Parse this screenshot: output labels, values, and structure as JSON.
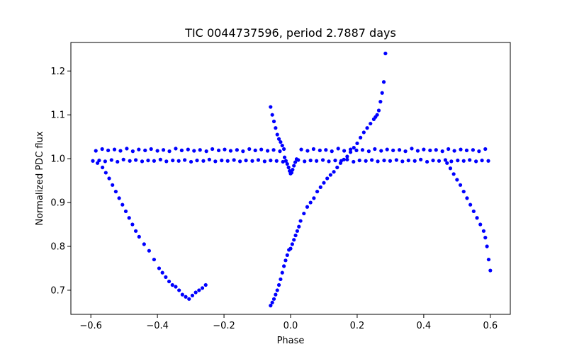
{
  "chart_data": {
    "type": "scatter",
    "title": "TIC 0044737596, period 2.7887 days",
    "xlabel": "Phase",
    "ylabel": "Normalized PDC flux",
    "xlim": [
      -0.66,
      0.66
    ],
    "ylim": [
      0.645,
      1.265
    ],
    "xticks": [
      -0.6,
      -0.4,
      -0.2,
      0.0,
      0.2,
      0.4,
      0.6
    ],
    "xtick_labels": [
      "−0.6",
      "−0.4",
      "−0.2",
      "0.0",
      "0.2",
      "0.4",
      "0.6"
    ],
    "yticks": [
      0.7,
      0.8,
      0.9,
      1.0,
      1.1,
      1.2
    ],
    "ytick_labels": [
      "0.7",
      "0.8",
      "0.9",
      "1.0",
      "1.1",
      "1.2"
    ],
    "grid": false,
    "marker_color": "#0000ff",
    "series": [
      {
        "points": [
          [
            -0.594,
            0.995
          ],
          [
            -0.585,
            1.018
          ],
          [
            -0.575,
            0.996
          ],
          [
            -0.566,
            1.022
          ],
          [
            -0.557,
            0.994
          ],
          [
            -0.548,
            1.019
          ],
          [
            -0.538,
            0.997
          ],
          [
            -0.529,
            1.021
          ],
          [
            -0.52,
            0.993
          ],
          [
            -0.511,
            1.018
          ],
          [
            -0.502,
            0.998
          ],
          [
            -0.492,
            1.023
          ],
          [
            -0.483,
            0.995
          ],
          [
            -0.474,
            1.017
          ],
          [
            -0.465,
            0.997
          ],
          [
            -0.456,
            1.021
          ],
          [
            -0.446,
            0.994
          ],
          [
            -0.437,
            1.019
          ],
          [
            -0.428,
            0.996
          ],
          [
            -0.419,
            1.022
          ],
          [
            -0.41,
            0.995
          ],
          [
            -0.4,
            1.018
          ],
          [
            -0.391,
            0.998
          ],
          [
            -0.382,
            1.02
          ],
          [
            -0.373,
            0.994
          ],
          [
            -0.364,
            1.017
          ],
          [
            -0.354,
            0.996
          ],
          [
            -0.345,
            1.023
          ],
          [
            -0.336,
            0.995
          ],
          [
            -0.327,
            1.019
          ],
          [
            -0.318,
            0.997
          ],
          [
            -0.308,
            1.021
          ],
          [
            -0.299,
            0.993
          ],
          [
            -0.29,
            1.018
          ],
          [
            -0.281,
            0.996
          ],
          [
            -0.272,
            1.02
          ],
          [
            -0.262,
            0.995
          ],
          [
            -0.253,
            1.017
          ],
          [
            -0.244,
            0.998
          ],
          [
            -0.235,
            1.022
          ],
          [
            -0.226,
            0.994
          ],
          [
            -0.216,
            1.019
          ],
          [
            -0.207,
            0.996
          ],
          [
            -0.198,
            1.021
          ],
          [
            -0.189,
            0.995
          ],
          [
            -0.18,
            1.018
          ],
          [
            -0.17,
            0.997
          ],
          [
            -0.161,
            1.02
          ],
          [
            -0.152,
            0.994
          ],
          [
            -0.143,
            1.017
          ],
          [
            -0.134,
            0.996
          ],
          [
            -0.124,
            1.022
          ],
          [
            -0.115,
            0.995
          ],
          [
            -0.106,
            1.019
          ],
          [
            -0.097,
            0.997
          ],
          [
            -0.088,
            1.021
          ],
          [
            -0.078,
            0.994
          ],
          [
            -0.069,
            1.018
          ],
          [
            -0.06,
            0.996
          ],
          [
            -0.051,
            1.02
          ],
          [
            -0.042,
            0.995
          ],
          [
            -0.032,
            1.017
          ],
          [
            -0.023,
            0.993
          ],
          [
            0.023,
            0.997
          ],
          [
            0.032,
            1.021
          ],
          [
            0.042,
            0.994
          ],
          [
            0.051,
            1.018
          ],
          [
            0.06,
            0.996
          ],
          [
            0.069,
            1.022
          ],
          [
            0.078,
            0.995
          ],
          [
            0.088,
            1.019
          ],
          [
            0.097,
            0.997
          ],
          [
            0.106,
            1.02
          ],
          [
            0.115,
            0.994
          ],
          [
            0.124,
            1.017
          ],
          [
            0.134,
            0.996
          ],
          [
            0.143,
            1.023
          ],
          [
            0.152,
            0.995
          ],
          [
            0.161,
            1.018
          ],
          [
            0.17,
            0.998
          ],
          [
            0.18,
            1.021
          ],
          [
            0.189,
            0.993
          ],
          [
            0.198,
            1.019
          ],
          [
            0.207,
            0.996
          ],
          [
            0.216,
            1.02
          ],
          [
            0.226,
            0.995
          ],
          [
            0.235,
            1.017
          ],
          [
            0.244,
            0.997
          ],
          [
            0.253,
            1.022
          ],
          [
            0.262,
            0.994
          ],
          [
            0.272,
            1.018
          ],
          [
            0.281,
            0.996
          ],
          [
            0.29,
            1.021
          ],
          [
            0.299,
            0.995
          ],
          [
            0.308,
            1.019
          ],
          [
            0.318,
            0.997
          ],
          [
            0.327,
            1.02
          ],
          [
            0.336,
            0.994
          ],
          [
            0.345,
            1.017
          ],
          [
            0.354,
            0.996
          ],
          [
            0.364,
            1.023
          ],
          [
            0.373,
            0.995
          ],
          [
            0.382,
            1.018
          ],
          [
            0.391,
            0.998
          ],
          [
            0.4,
            1.021
          ],
          [
            0.41,
            0.993
          ],
          [
            0.419,
            1.019
          ],
          [
            0.428,
            0.996
          ],
          [
            0.437,
            1.02
          ],
          [
            0.446,
            0.995
          ],
          [
            0.456,
            1.017
          ],
          [
            0.465,
            0.997
          ],
          [
            0.474,
            1.022
          ],
          [
            0.483,
            0.994
          ],
          [
            0.492,
            1.018
          ],
          [
            0.502,
            0.996
          ],
          [
            0.511,
            1.021
          ],
          [
            0.52,
            0.995
          ],
          [
            0.529,
            1.019
          ],
          [
            0.538,
            0.997
          ],
          [
            0.548,
            1.02
          ],
          [
            0.557,
            0.994
          ],
          [
            0.566,
            1.017
          ],
          [
            0.575,
            0.996
          ],
          [
            0.585,
            1.022
          ],
          [
            0.594,
            0.995
          ],
          [
            -0.018,
            1.003
          ],
          [
            -0.014,
            0.995
          ],
          [
            -0.01,
            0.988
          ],
          [
            -0.006,
            0.98
          ],
          [
            -0.003,
            0.972
          ],
          [
            0.0,
            0.966
          ],
          [
            0.003,
            0.968
          ],
          [
            0.006,
            0.975
          ],
          [
            0.01,
            0.984
          ],
          [
            0.014,
            0.992
          ],
          [
            0.018,
            0.999
          ],
          [
            -0.58,
            0.99
          ],
          [
            -0.565,
            0.98
          ],
          [
            -0.555,
            0.968
          ],
          [
            -0.545,
            0.955
          ],
          [
            -0.535,
            0.94
          ],
          [
            -0.525,
            0.925
          ],
          [
            -0.515,
            0.91
          ],
          [
            -0.505,
            0.895
          ],
          [
            -0.495,
            0.88
          ],
          [
            -0.485,
            0.865
          ],
          [
            -0.475,
            0.85
          ],
          [
            -0.465,
            0.835
          ],
          [
            -0.455,
            0.822
          ],
          [
            -0.44,
            0.805
          ],
          [
            -0.425,
            0.79
          ],
          [
            -0.41,
            0.77
          ],
          [
            -0.395,
            0.75
          ],
          [
            -0.385,
            0.74
          ],
          [
            -0.375,
            0.73
          ],
          [
            -0.365,
            0.72
          ],
          [
            -0.355,
            0.712
          ],
          [
            -0.345,
            0.708
          ],
          [
            -0.335,
            0.7
          ],
          [
            -0.325,
            0.69
          ],
          [
            -0.315,
            0.685
          ],
          [
            -0.305,
            0.68
          ],
          [
            -0.295,
            0.688
          ],
          [
            -0.285,
            0.695
          ],
          [
            -0.275,
            0.7
          ],
          [
            -0.265,
            0.705
          ],
          [
            -0.255,
            0.712
          ],
          [
            0.47,
            0.99
          ],
          [
            0.48,
            0.978
          ],
          [
            0.49,
            0.965
          ],
          [
            0.5,
            0.952
          ],
          [
            0.51,
            0.94
          ],
          [
            0.52,
            0.925
          ],
          [
            0.53,
            0.91
          ],
          [
            0.54,
            0.895
          ],
          [
            0.55,
            0.88
          ],
          [
            0.56,
            0.865
          ],
          [
            0.57,
            0.85
          ],
          [
            0.58,
            0.835
          ],
          [
            0.585,
            0.82
          ],
          [
            0.59,
            0.8
          ],
          [
            0.595,
            0.77
          ],
          [
            0.6,
            0.745
          ],
          [
            -0.06,
            0.665
          ],
          [
            -0.055,
            0.672
          ],
          [
            -0.05,
            0.68
          ],
          [
            -0.045,
            0.69
          ],
          [
            -0.04,
            0.7
          ],
          [
            -0.035,
            0.712
          ],
          [
            -0.03,
            0.725
          ],
          [
            -0.025,
            0.74
          ],
          [
            -0.02,
            0.755
          ],
          [
            -0.015,
            0.768
          ],
          [
            -0.01,
            0.78
          ],
          [
            -0.005,
            0.792
          ],
          [
            0.0,
            0.795
          ],
          [
            0.005,
            0.805
          ],
          [
            0.01,
            0.815
          ],
          [
            0.015,
            0.825
          ],
          [
            0.02,
            0.835
          ],
          [
            0.025,
            0.845
          ],
          [
            0.03,
            0.858
          ],
          [
            0.04,
            0.875
          ],
          [
            0.05,
            0.89
          ],
          [
            0.06,
            0.9
          ],
          [
            0.07,
            0.91
          ],
          [
            0.08,
            0.925
          ],
          [
            0.09,
            0.935
          ],
          [
            0.1,
            0.945
          ],
          [
            0.11,
            0.955
          ],
          [
            0.12,
            0.963
          ],
          [
            0.13,
            0.97
          ],
          [
            0.14,
            0.98
          ],
          [
            0.15,
            0.99
          ],
          [
            0.16,
            0.998
          ],
          [
            0.17,
            1.005
          ],
          [
            0.18,
            1.015
          ],
          [
            0.19,
            1.025
          ],
          [
            0.2,
            1.035
          ],
          [
            0.21,
            1.048
          ],
          [
            0.22,
            1.06
          ],
          [
            0.23,
            1.07
          ],
          [
            0.24,
            1.08
          ],
          [
            0.25,
            1.09
          ],
          [
            0.255,
            1.095
          ],
          [
            0.26,
            1.1
          ],
          [
            0.265,
            1.11
          ],
          [
            0.27,
            1.13
          ],
          [
            0.275,
            1.15
          ],
          [
            0.28,
            1.175
          ],
          [
            0.285,
            1.24
          ],
          [
            -0.06,
            1.118
          ],
          [
            -0.055,
            1.1
          ],
          [
            -0.05,
            1.085
          ],
          [
            -0.045,
            1.07
          ],
          [
            -0.04,
            1.055
          ],
          [
            -0.035,
            1.045
          ],
          [
            -0.03,
            1.038
          ],
          [
            -0.025,
            1.03
          ],
          [
            -0.02,
            1.022
          ]
        ]
      }
    ]
  }
}
